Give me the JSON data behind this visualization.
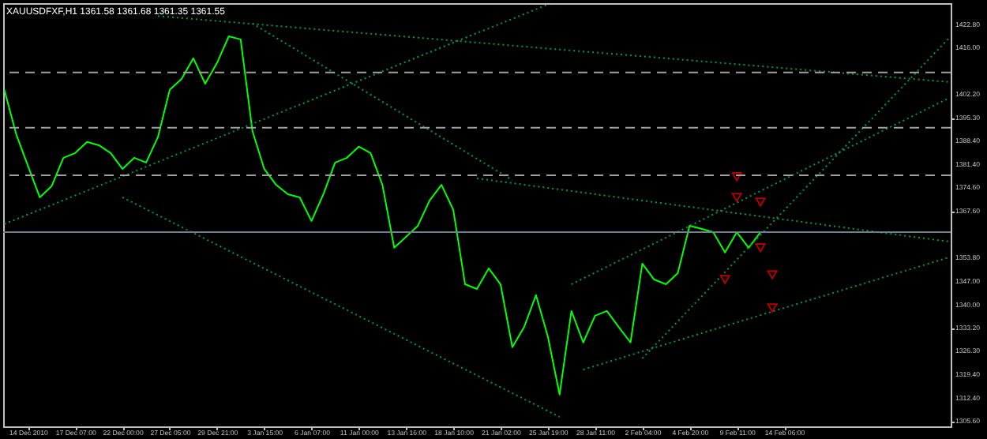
{
  "chart_data": {
    "type": "line",
    "title": "XAUUSDFXF,H1  1361.58 1361.68 1361.35 1361.55",
    "categories": [
      null,
      null,
      "14 Dec 2010",
      null,
      null,
      null,
      "17 Dec 07:00",
      null,
      null,
      null,
      "22 Dec 00:00",
      null,
      null,
      null,
      "27 Dec 05:00",
      null,
      null,
      null,
      "29 Dec 21:00",
      null,
      null,
      null,
      "3 Jan 15:00",
      null,
      null,
      null,
      "6 Jan 07:00",
      null,
      null,
      null,
      "11 Jan 00:00",
      null,
      null,
      null,
      "13 Jan 16:00",
      null,
      null,
      null,
      "18 Jan 10:00",
      null,
      null,
      null,
      "21 Jan 02:00",
      null,
      null,
      null,
      "25 Jan 19:00",
      null,
      null,
      null,
      "28 Jan 11:00",
      null,
      null,
      null,
      "2 Feb 04:00",
      null,
      null,
      null,
      "4 Feb 20:00",
      null,
      null,
      null,
      "9 Feb 11:00",
      null,
      null,
      null,
      "14 Feb 06:00",
      null,
      null,
      null,
      null,
      null,
      null,
      null,
      null,
      null,
      null,
      null,
      null,
      null,
      null
    ],
    "series": [
      {
        "color": "#00ff00",
        "values": [
          1403.7,
          1390.6,
          1381.2,
          1371.9,
          1375.2,
          1383.6,
          1385.0,
          1388.3,
          1387.3,
          1385.0,
          1380.3,
          1383.6,
          1382.2,
          1389.7,
          1403.7,
          1406.9,
          1413.0,
          1405.5,
          1411.6,
          1419.5,
          1418.6,
          1391.5,
          1380.3,
          1375.6,
          1372.8,
          1371.9,
          1364.9,
          1372.8,
          1382.2,
          1383.6,
          1386.9,
          1385.0,
          1375.6,
          1357.0,
          1360.2,
          1363.5,
          1371.0,
          1375.6,
          1368.2,
          1346.2,
          1344.8,
          1350.9,
          1346.2,
          1327.6,
          1333.6,
          1343.0,
          1330.8,
          1313.6,
          1338.3,
          1329.0,
          1336.9,
          1338.3,
          1333.6,
          1329.0,
          1352.3,
          1347.6,
          1346.2,
          1349.5,
          1363.5,
          1362.6,
          1361.6,
          1355.6,
          1361.6,
          1357.0,
          1361.6,
          null,
          null,
          null,
          null,
          null,
          null,
          null,
          null,
          null,
          null,
          null,
          null,
          null,
          null,
          null,
          null
        ]
      },
      {
        "color": "#00994d",
        "line_style": "dotted",
        "values": [
          null,
          null,
          null,
          null,
          null,
          null,
          null,
          null,
          null,
          null,
          null,
          null,
          null,
          1425.5,
          null,
          null,
          null,
          null,
          null,
          null,
          null,
          null,
          null,
          null,
          null,
          null,
          null,
          null,
          null,
          null,
          null,
          null,
          null,
          null,
          null,
          null,
          null,
          null,
          null,
          null,
          null,
          null,
          null,
          null,
          null,
          null,
          null,
          null,
          null,
          null,
          null,
          null,
          null,
          null,
          null,
          null,
          null,
          null,
          null,
          null,
          null,
          null,
          null,
          null,
          null,
          null,
          null,
          null,
          null,
          null,
          null,
          null,
          null,
          null,
          null,
          null,
          null,
          null,
          null,
          null,
          1406.0
        ]
      },
      {
        "color": "#00994d",
        "line_style": "dotted",
        "values": [
          1364.0,
          null,
          null,
          null,
          null,
          null,
          null,
          null,
          null,
          null,
          null,
          null,
          null,
          null,
          null,
          null,
          null,
          null,
          null,
          null,
          null,
          null,
          null,
          null,
          null,
          null,
          null,
          null,
          null,
          null,
          null,
          null,
          null,
          null,
          null,
          null,
          null,
          null,
          null,
          null,
          null,
          null,
          null,
          null,
          null,
          null,
          1428.9,
          null,
          null,
          null,
          null,
          null,
          null,
          null,
          null,
          null,
          null,
          null,
          null,
          null,
          null,
          null,
          null,
          null,
          null,
          null,
          null,
          null,
          null,
          null,
          null,
          null,
          null,
          null,
          null,
          null,
          null,
          null,
          null,
          null,
          null
        ]
      },
      {
        "color": "#00994d",
        "line_style": "dotted",
        "values": [
          null,
          null,
          null,
          null,
          null,
          null,
          null,
          null,
          null,
          null,
          null,
          null,
          null,
          null,
          null,
          null,
          null,
          null,
          null,
          null,
          null,
          1423.3,
          null,
          null,
          null,
          null,
          null,
          null,
          null,
          null,
          null,
          null,
          null,
          null,
          null,
          null,
          null,
          null,
          null,
          null,
          null,
          null,
          null,
          1377.0,
          null,
          null,
          null,
          null,
          null,
          null,
          null,
          null,
          null,
          null,
          null,
          null,
          null,
          null,
          null,
          null,
          null,
          null,
          null,
          null,
          null,
          null,
          null,
          null,
          null,
          null,
          null,
          null,
          null,
          null,
          null,
          null,
          null,
          null,
          null,
          null,
          null
        ]
      },
      {
        "color": "#00994d",
        "line_style": "dotted",
        "values": [
          null,
          null,
          null,
          null,
          null,
          null,
          null,
          null,
          null,
          null,
          1371.9,
          null,
          null,
          null,
          null,
          null,
          null,
          null,
          null,
          null,
          null,
          null,
          null,
          null,
          null,
          null,
          null,
          null,
          null,
          null,
          null,
          null,
          null,
          null,
          null,
          null,
          null,
          null,
          null,
          null,
          null,
          null,
          null,
          null,
          null,
          null,
          null,
          1307.0,
          null,
          null,
          null,
          null,
          null,
          null,
          null,
          null,
          null,
          null,
          null,
          null,
          null,
          null,
          null,
          null,
          null,
          null,
          null,
          null,
          null,
          null,
          null,
          null,
          null,
          null,
          null,
          null,
          null,
          null,
          null,
          null,
          null
        ]
      },
      {
        "color": "#00994d",
        "line_style": "dotted",
        "values": [
          null,
          null,
          null,
          null,
          null,
          null,
          null,
          null,
          null,
          null,
          null,
          null,
          null,
          null,
          null,
          null,
          null,
          null,
          null,
          null,
          null,
          null,
          null,
          null,
          null,
          null,
          null,
          null,
          null,
          null,
          null,
          null,
          null,
          null,
          null,
          null,
          null,
          null,
          null,
          null,
          null,
          null,
          null,
          null,
          null,
          null,
          null,
          null,
          null,
          1321.0,
          null,
          null,
          null,
          null,
          null,
          null,
          null,
          null,
          null,
          null,
          null,
          null,
          null,
          null,
          null,
          null,
          null,
          null,
          null,
          null,
          null,
          null,
          null,
          null,
          null,
          null,
          null,
          null,
          null,
          null,
          1354.2
        ]
      },
      {
        "color": "#00994d",
        "line_style": "dotted",
        "values": [
          null,
          null,
          null,
          null,
          null,
          null,
          null,
          null,
          null,
          null,
          null,
          null,
          null,
          null,
          null,
          null,
          null,
          null,
          null,
          null,
          null,
          null,
          null,
          null,
          null,
          null,
          null,
          null,
          null,
          null,
          null,
          null,
          null,
          null,
          null,
          null,
          null,
          null,
          null,
          null,
          null,
          null,
          null,
          null,
          null,
          null,
          null,
          null,
          1346.2,
          null,
          null,
          null,
          null,
          null,
          null,
          null,
          null,
          null,
          null,
          null,
          null,
          null,
          null,
          null,
          null,
          null,
          null,
          null,
          null,
          null,
          null,
          null,
          null,
          null,
          null,
          null,
          null,
          null,
          null,
          null,
          1401.3
        ]
      },
      {
        "color": "#00994d",
        "line_style": "dotted",
        "values": [
          null,
          null,
          null,
          null,
          null,
          null,
          null,
          null,
          null,
          null,
          null,
          null,
          null,
          null,
          null,
          null,
          null,
          null,
          null,
          null,
          null,
          null,
          null,
          null,
          null,
          null,
          null,
          null,
          null,
          null,
          null,
          null,
          null,
          null,
          null,
          null,
          null,
          null,
          null,
          null,
          null,
          null,
          null,
          null,
          null,
          null,
          null,
          null,
          null,
          null,
          null,
          null,
          null,
          null,
          1324.3,
          null,
          null,
          null,
          null,
          null,
          null,
          null,
          null,
          null,
          null,
          null,
          null,
          null,
          null,
          null,
          null,
          null,
          null,
          null,
          null,
          null,
          null,
          null,
          null,
          null,
          1419.1
        ]
      },
      {
        "color": "#00994d",
        "line_style": "dotted",
        "values": [
          null,
          null,
          null,
          null,
          null,
          null,
          null,
          null,
          null,
          null,
          null,
          null,
          null,
          null,
          null,
          null,
          null,
          null,
          null,
          null,
          null,
          null,
          null,
          null,
          null,
          null,
          null,
          null,
          null,
          null,
          null,
          null,
          null,
          null,
          null,
          null,
          null,
          null,
          null,
          null,
          1377.5,
          null,
          null,
          null,
          null,
          null,
          null,
          null,
          null,
          null,
          null,
          null,
          null,
          null,
          null,
          null,
          null,
          null,
          null,
          null,
          null,
          null,
          null,
          null,
          null,
          null,
          null,
          null,
          null,
          null,
          null,
          null,
          null,
          null,
          null,
          null,
          null,
          null,
          null,
          null,
          1358.8
        ]
      },
      {
        "type": "scatter",
        "color": "#b00000",
        "marker": "triangle",
        "values": [
          null,
          null,
          null,
          null,
          null,
          null,
          null,
          null,
          null,
          null,
          null,
          null,
          null,
          null,
          null,
          null,
          null,
          null,
          null,
          null,
          null,
          null,
          null,
          null,
          null,
          null,
          null,
          null,
          null,
          null,
          null,
          null,
          null,
          null,
          null,
          null,
          null,
          null,
          null,
          null,
          null,
          null,
          null,
          null,
          null,
          null,
          null,
          null,
          null,
          null,
          null,
          null,
          null,
          null,
          null,
          null,
          null,
          null,
          null,
          null,
          null,
          1347.6,
          1378.0,
          null,
          1370.5,
          1349.0,
          null,
          null,
          null,
          null,
          null,
          null,
          null,
          null,
          null,
          null,
          null,
          null,
          null,
          null,
          null
        ]
      },
      {
        "type": "scatter",
        "color": "#b00000",
        "marker": "triangle",
        "values": [
          null,
          null,
          null,
          null,
          null,
          null,
          null,
          null,
          null,
          null,
          null,
          null,
          null,
          null,
          null,
          null,
          null,
          null,
          null,
          null,
          null,
          null,
          null,
          null,
          null,
          null,
          null,
          null,
          null,
          null,
          null,
          null,
          null,
          null,
          null,
          null,
          null,
          null,
          null,
          null,
          null,
          null,
          null,
          null,
          null,
          null,
          null,
          null,
          null,
          null,
          null,
          null,
          null,
          null,
          null,
          null,
          null,
          null,
          null,
          null,
          null,
          null,
          1371.9,
          null,
          1357.0,
          1339.2,
          null,
          null,
          null,
          null,
          null,
          null,
          null,
          null,
          null,
          null,
          null,
          null,
          null,
          null,
          null
        ]
      }
    ],
    "ylim": [
      1304.2,
      1429.3
    ],
    "yticks": [
      {
        "value": 1305.6,
        "label": "1305.60"
      },
      {
        "value": 1312.4,
        "label": "1312.40"
      },
      {
        "value": 1319.4,
        "label": "1319.40"
      },
      {
        "value": 1326.3,
        "label": "1326.30"
      },
      {
        "value": 1333.2,
        "label": "1333.20"
      },
      {
        "value": 1340.0,
        "label": "1340.00"
      },
      {
        "value": 1347.0,
        "label": "1347.00"
      },
      {
        "value": 1353.8,
        "label": "1353.80"
      },
      {
        "value": 1367.6,
        "label": "1367.60"
      },
      {
        "value": 1374.6,
        "label": "1374.60"
      },
      {
        "value": 1381.4,
        "label": "1381.40"
      },
      {
        "value": 1388.4,
        "label": "1388.40"
      },
      {
        "value": 1395.3,
        "label": "1395.30"
      },
      {
        "value": 1402.2,
        "label": "1402.20"
      },
      {
        "value": 1416.0,
        "label": "1416.00"
      },
      {
        "value": 1422.8,
        "label": "1422.80"
      }
    ],
    "ref_lines": [
      {
        "axis": "y",
        "value": 1408.8,
        "color": "#a0a0a0",
        "line_style": "dashed"
      },
      {
        "axis": "y",
        "value": 1392.5,
        "color": "#a0a0a0",
        "line_style": "dashed"
      },
      {
        "axis": "y",
        "value": 1378.4,
        "color": "#a0a0a0",
        "line_style": "dashed"
      },
      {
        "axis": "y",
        "value": 1361.6,
        "color": "#708090",
        "line_style": "solid"
      }
    ],
    "grid": false
  }
}
